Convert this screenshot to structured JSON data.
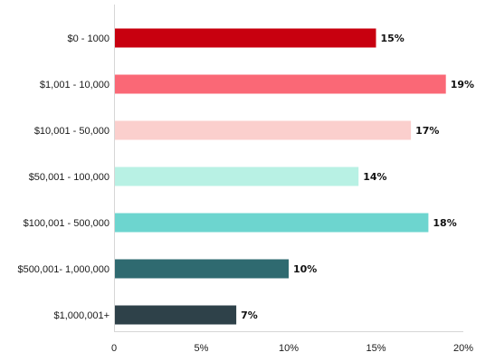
{
  "chart_data": {
    "type": "bar",
    "orientation": "horizontal",
    "categories": [
      "$0 - 1000",
      "$1,001 - 10,000",
      "$10,001 - 50,000",
      "$50,001 - 100,000",
      "$100,001 - 500,000",
      "$500,001- 1,000,000",
      "$1,000,001+"
    ],
    "values": [
      15,
      19,
      17,
      14,
      18,
      10,
      7
    ],
    "data_labels": [
      "15%",
      "19%",
      "17%",
      "14%",
      "18%",
      "10%",
      "7%"
    ],
    "colors": [
      "#c8000f",
      "#fa6876",
      "#fbcfcd",
      "#b8f1e4",
      "#6dd5cf",
      "#2f6a70",
      "#2e4149"
    ],
    "xlim": [
      0,
      20
    ],
    "x_ticks": [
      0,
      5,
      10,
      15,
      20
    ],
    "x_tick_labels": [
      "0",
      "5%",
      "10%",
      "15%",
      "20%"
    ],
    "grid": false,
    "legend": "none"
  }
}
